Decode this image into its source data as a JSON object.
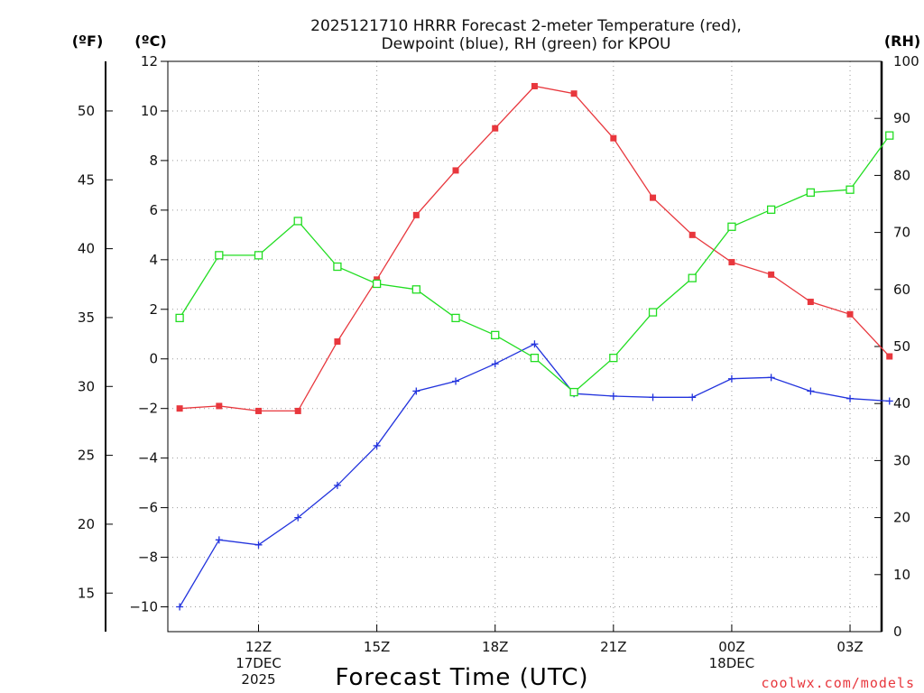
{
  "chart_data": {
    "type": "line",
    "title_lines": [
      "2025121710 HRRR Forecast 2-meter Temperature (red),",
      "Dewpoint (blue), RH (green) for KPOU"
    ],
    "xlabel": "Forecast Time (UTC)",
    "credit": "coolwx.com/models",
    "units": {
      "fahrenheit": "(ºF)",
      "celsius": "(ºC)",
      "rh": "(RH)"
    },
    "x_hours": [
      10,
      11,
      12,
      13,
      14,
      15,
      16,
      17,
      18,
      19,
      20,
      21,
      22,
      23,
      24,
      25,
      26,
      27,
      28
    ],
    "xlim": [
      9.7,
      27.8
    ],
    "x_ticks": [
      {
        "hour": 12,
        "lines": [
          "12Z",
          "17DEC",
          "2025"
        ]
      },
      {
        "hour": 15,
        "lines": [
          "15Z"
        ]
      },
      {
        "hour": 18,
        "lines": [
          "18Z"
        ]
      },
      {
        "hour": 21,
        "lines": [
          "21Z"
        ]
      },
      {
        "hour": 24,
        "lines": [
          "00Z",
          "18DEC"
        ]
      },
      {
        "hour": 27,
        "lines": [
          "03Z"
        ]
      }
    ],
    "celsius_axis": {
      "min": -11,
      "max": 12,
      "ticks": [
        -10,
        -8,
        -6,
        -4,
        -2,
        0,
        2,
        4,
        6,
        8,
        10,
        12
      ]
    },
    "fahrenheit_axis": {
      "ticks": [
        15,
        20,
        25,
        30,
        35,
        40,
        45,
        50
      ]
    },
    "rh_axis": {
      "min": 0,
      "max": 100,
      "ticks": [
        0,
        10,
        20,
        30,
        40,
        50,
        60,
        70,
        80,
        90,
        100
      ]
    },
    "series": [
      {
        "name": "Temperature",
        "axis": "celsius",
        "color": "#e8373d",
        "marker": "filled-square",
        "values": [
          -2.0,
          -1.9,
          -2.1,
          -2.1,
          0.7,
          3.2,
          5.8,
          7.6,
          9.3,
          11.0,
          10.7,
          8.9,
          6.5,
          5.0,
          3.9,
          3.4,
          2.3,
          1.8,
          0.1
        ]
      },
      {
        "name": "Dewpoint",
        "axis": "celsius",
        "color": "#2233dd",
        "marker": "plus",
        "values": [
          -10.0,
          -7.3,
          -7.5,
          -6.4,
          -5.1,
          -3.5,
          -1.3,
          -0.9,
          -0.2,
          0.6,
          -1.4,
          -1.5,
          -1.55,
          -1.55,
          -0.8,
          -0.75,
          -1.3,
          -1.6,
          -1.7
        ]
      },
      {
        "name": "RH",
        "axis": "rh",
        "color": "#22dd22",
        "marker": "open-square",
        "values": [
          55,
          66,
          66,
          72,
          64,
          61,
          60,
          55,
          52,
          48,
          42,
          48,
          56,
          62,
          71,
          74,
          77,
          77.5,
          87
        ]
      }
    ]
  }
}
